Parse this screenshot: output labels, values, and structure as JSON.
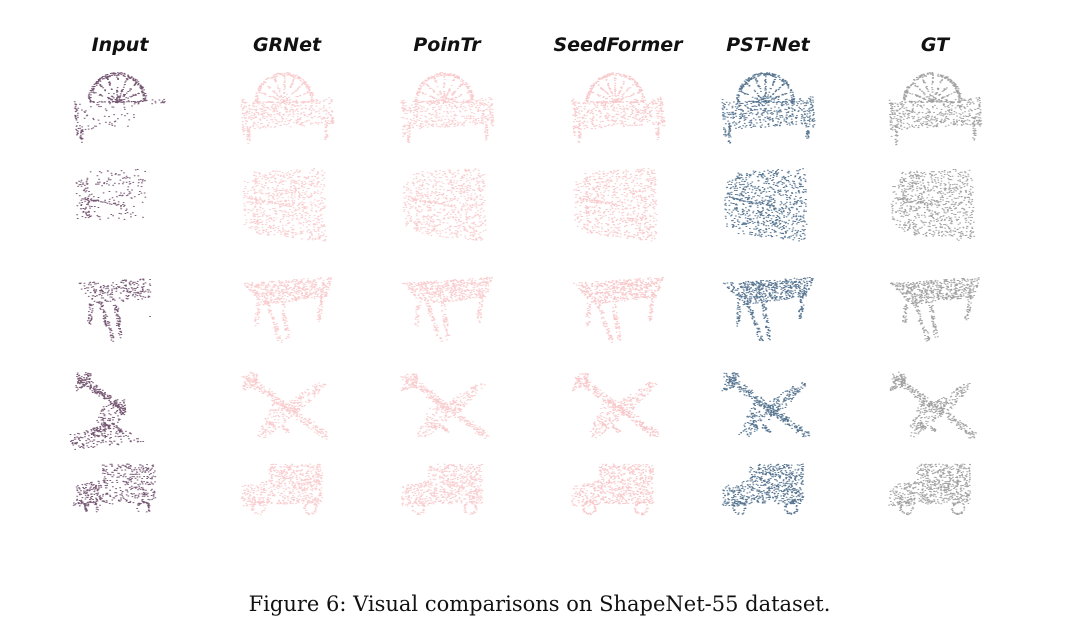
{
  "figure": {
    "columns": [
      "Input",
      "GRNet",
      "PoinTr",
      "SeedFormer",
      "PST-Net",
      "GT"
    ],
    "rows": [
      "bench",
      "cabinet",
      "table",
      "airplane",
      "truck"
    ],
    "caption": "Figure 6: Visual comparisons on ShapeNet-55 dataset.",
    "colors": {
      "input": "#5e3a5a",
      "baselines": "#f4a3a6",
      "pst_net": "#2d5275",
      "gt": "#8a8a8a"
    }
  }
}
